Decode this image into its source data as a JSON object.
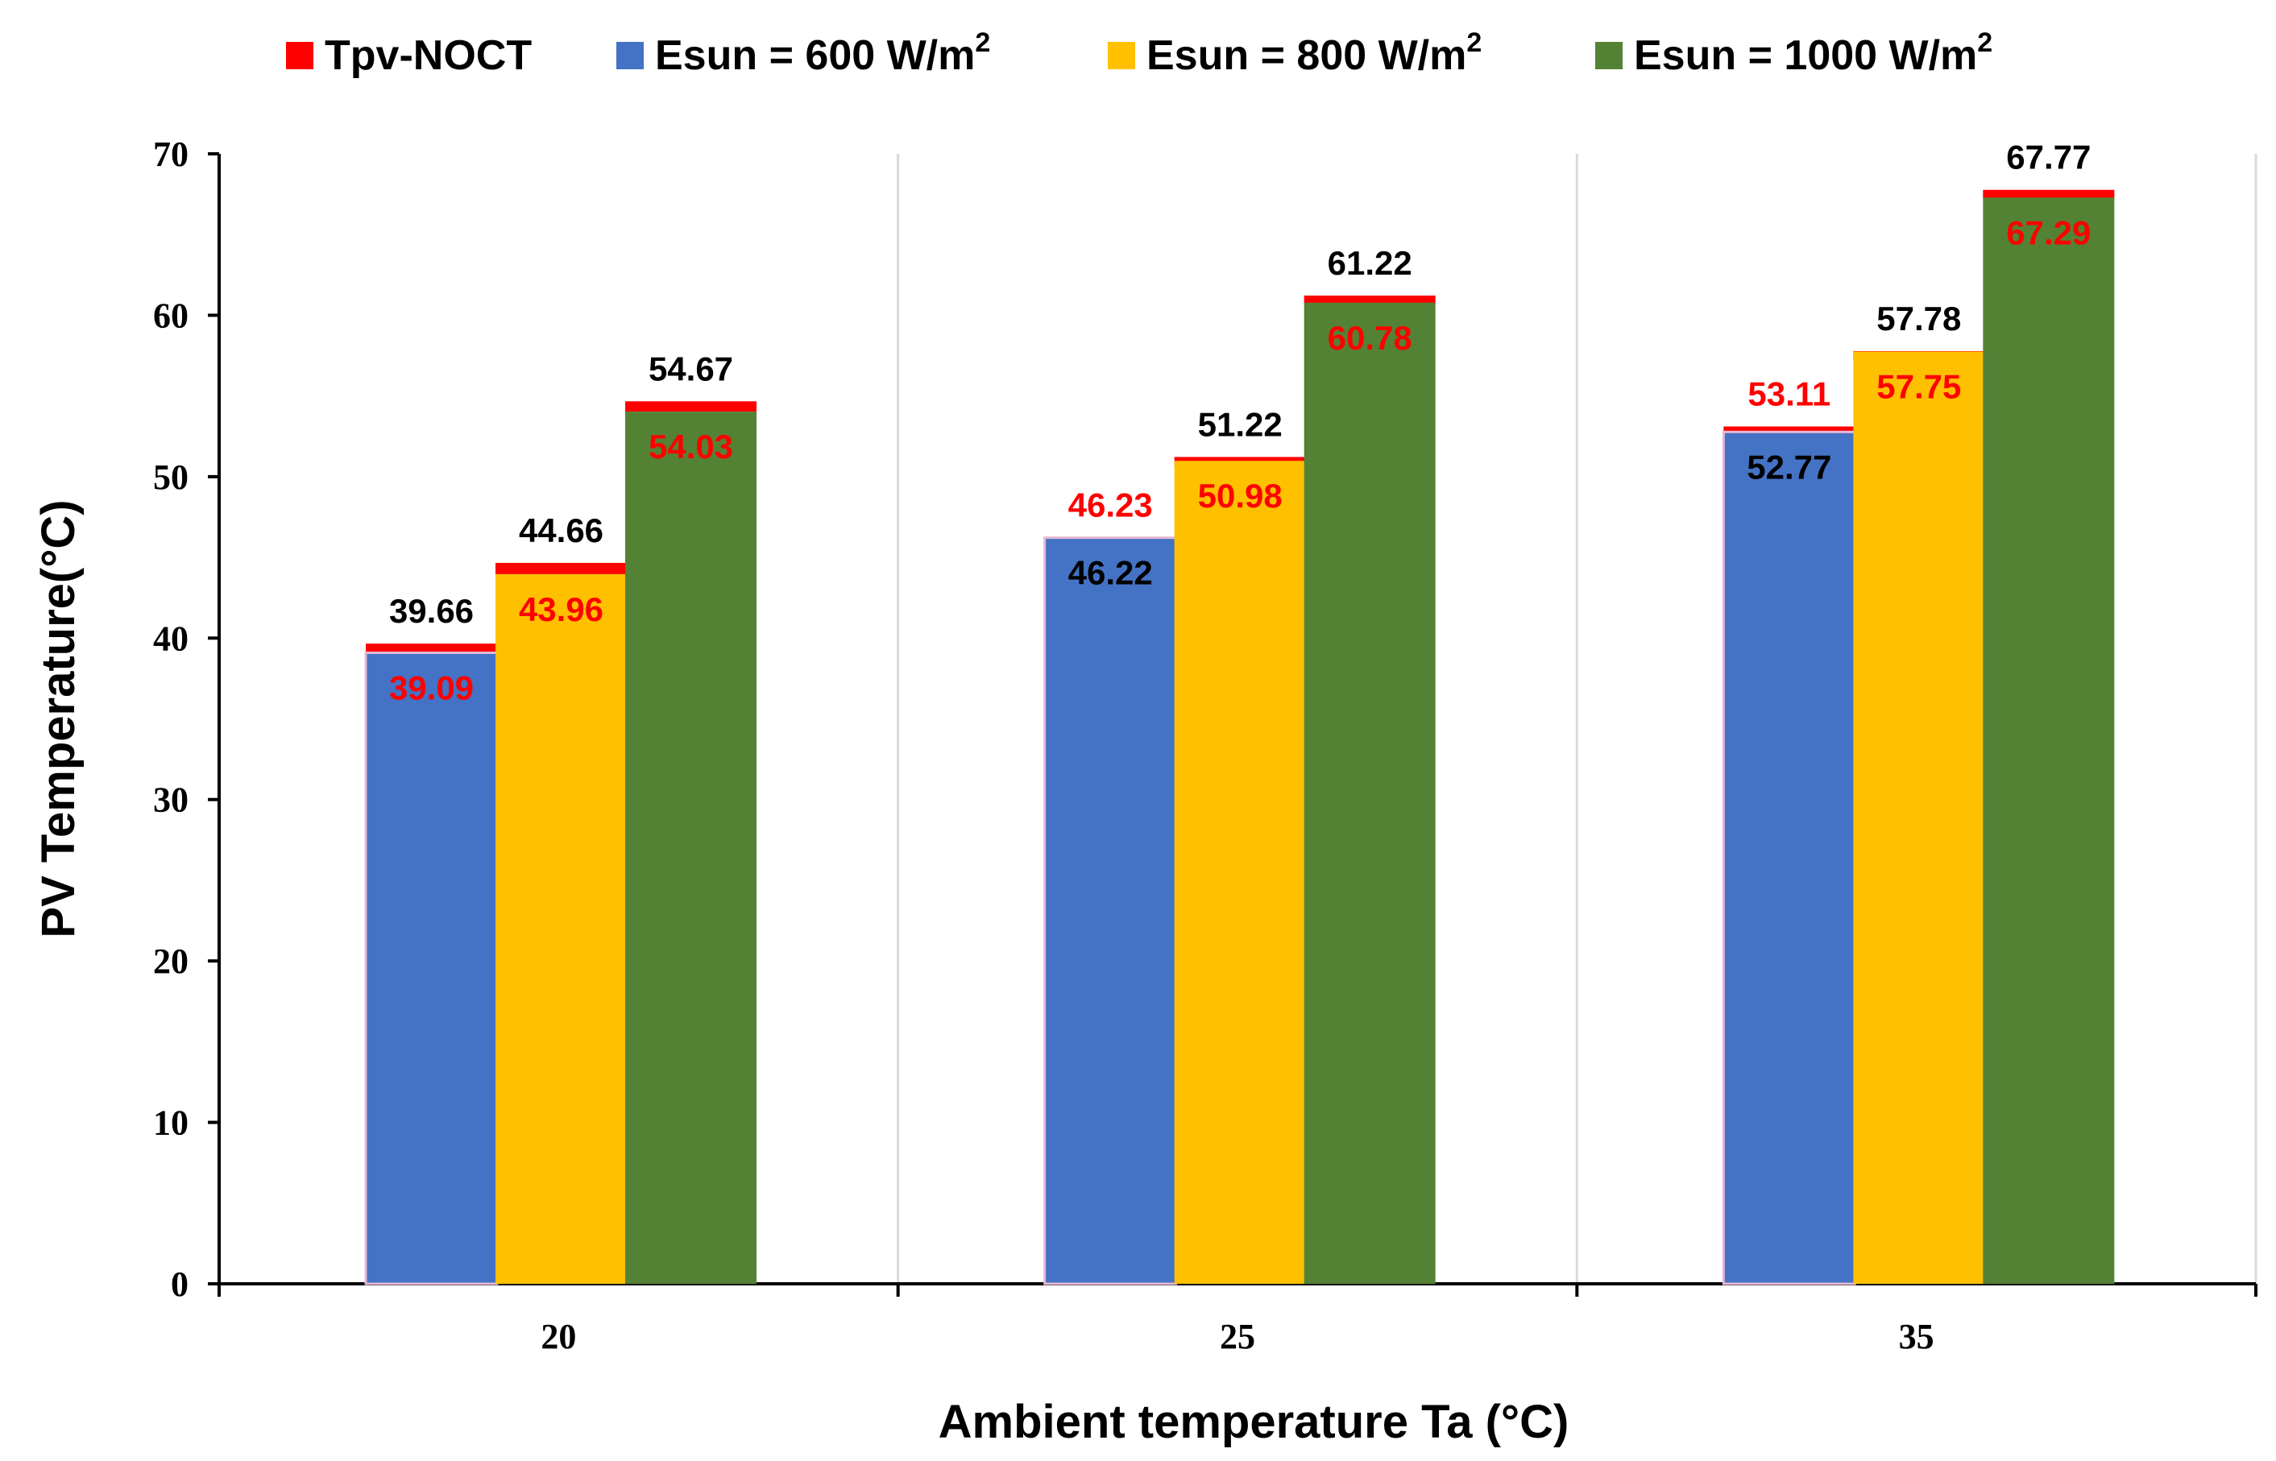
{
  "chart_data": {
    "type": "bar",
    "title": "",
    "xlabel": "Ambient temperature Ta (°C)",
    "ylabel": "PV Temperature(°C)",
    "ylim": [
      0,
      70
    ],
    "yticks": [
      0,
      10,
      20,
      30,
      40,
      50,
      60,
      70
    ],
    "grid": "vertical",
    "legend_position": "top",
    "categories": [
      "20",
      "25",
      "35"
    ],
    "legend": [
      {
        "label": "Tpv-NOCT",
        "sup": "",
        "color": "#ff0000"
      },
      {
        "label": "Esun = 600 W/m",
        "sup": "2",
        "color": "#4472c4"
      },
      {
        "label": "Esun = 800 W/m",
        "sup": "2",
        "color": "#ffc000"
      },
      {
        "label": "Esun = 1000 W/m",
        "sup": "2",
        "color": "#548235"
      }
    ],
    "series": [
      {
        "name": "Esun = 600 W/m2",
        "color": "#4472c4",
        "values": [
          39.09,
          46.22,
          52.77
        ],
        "value_labels": [
          "39.09",
          "46.22",
          "52.77"
        ],
        "value_label_colors": [
          "#ff0000",
          "#000000",
          "#000000"
        ]
      },
      {
        "name": "Esun = 800 W/m2",
        "color": "#ffc000",
        "values": [
          43.96,
          50.98,
          57.75
        ],
        "value_labels": [
          "43.96",
          "50.98",
          "57.75"
        ],
        "value_label_colors": [
          "#ff0000",
          "#ff0000",
          "#ff0000"
        ]
      },
      {
        "name": "Esun = 1000 W/m2",
        "color": "#548235",
        "values": [
          54.03,
          60.78,
          67.29
        ],
        "value_labels": [
          "54.03",
          "60.78",
          "67.29"
        ],
        "value_label_colors": [
          "#ff0000",
          "#ff0000",
          "#ff0000"
        ]
      }
    ],
    "noct_series": {
      "name": "Tpv-NOCT",
      "color": "#ff0000",
      "values": [
        [
          39.66,
          44.66,
          54.67
        ],
        [
          46.23,
          51.22,
          61.22
        ],
        [
          53.11,
          57.78,
          67.77
        ]
      ],
      "value_labels": [
        [
          "39.66",
          "44.66",
          "54.67"
        ],
        [
          "46.23",
          "51.22",
          "61.22"
        ],
        [
          "53.11",
          "57.78",
          "67.77"
        ]
      ],
      "value_label_colors": [
        [
          "#000000",
          "#000000",
          "#000000"
        ],
        [
          "#ff0000",
          "#000000",
          "#000000"
        ],
        [
          "#ff0000",
          "#000000",
          "#000000"
        ]
      ]
    }
  }
}
